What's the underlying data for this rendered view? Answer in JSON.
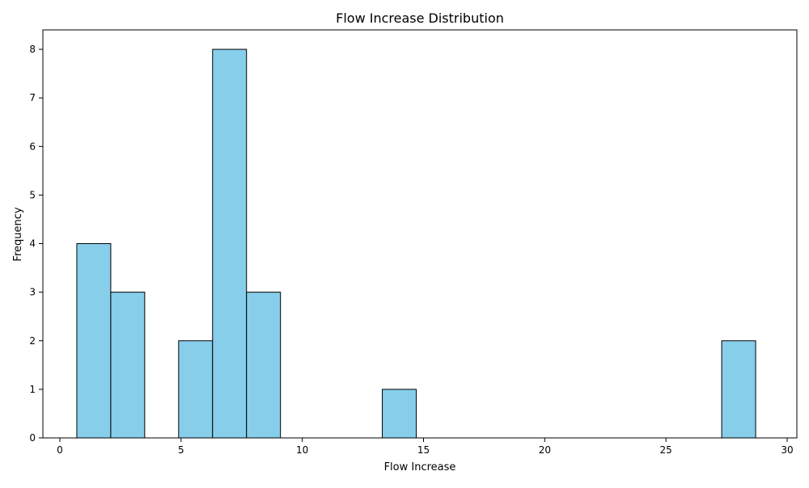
{
  "chart_data": {
    "type": "bar",
    "title": "Flow Increase Distribution",
    "xlabel": "Flow Increase",
    "ylabel": "Frequency",
    "xlim": [
      -0.7,
      30.4
    ],
    "ylim": [
      0,
      8.4
    ],
    "xticks": [
      0,
      5,
      10,
      15,
      20,
      25,
      30
    ],
    "yticks": [
      0,
      1,
      2,
      3,
      4,
      5,
      6,
      7,
      8
    ],
    "bins": [
      {
        "x0": 0.7,
        "x1": 2.1,
        "count": 4
      },
      {
        "x0": 2.1,
        "x1": 3.5,
        "count": 3
      },
      {
        "x0": 3.5,
        "x1": 4.9,
        "count": 0
      },
      {
        "x0": 4.9,
        "x1": 6.3,
        "count": 2
      },
      {
        "x0": 6.3,
        "x1": 7.7,
        "count": 8
      },
      {
        "x0": 7.7,
        "x1": 9.1,
        "count": 3
      },
      {
        "x0": 9.1,
        "x1": 10.5,
        "count": 0
      },
      {
        "x0": 10.5,
        "x1": 11.9,
        "count": 0
      },
      {
        "x0": 11.9,
        "x1": 13.3,
        "count": 0
      },
      {
        "x0": 13.3,
        "x1": 14.7,
        "count": 1
      },
      {
        "x0": 14.7,
        "x1": 16.1,
        "count": 0
      },
      {
        "x0": 16.1,
        "x1": 17.5,
        "count": 0
      },
      {
        "x0": 17.5,
        "x1": 18.9,
        "count": 0
      },
      {
        "x0": 18.9,
        "x1": 20.3,
        "count": 0
      },
      {
        "x0": 20.3,
        "x1": 21.7,
        "count": 0
      },
      {
        "x0": 21.7,
        "x1": 23.1,
        "count": 0
      },
      {
        "x0": 23.1,
        "x1": 24.5,
        "count": 0
      },
      {
        "x0": 24.5,
        "x1": 25.9,
        "count": 0
      },
      {
        "x0": 25.9,
        "x1": 27.3,
        "count": 0
      },
      {
        "x0": 27.3,
        "x1": 28.7,
        "count": 2
      }
    ],
    "bar_color": "#87ceeb",
    "edge_color": "#000000",
    "grid": false
  }
}
